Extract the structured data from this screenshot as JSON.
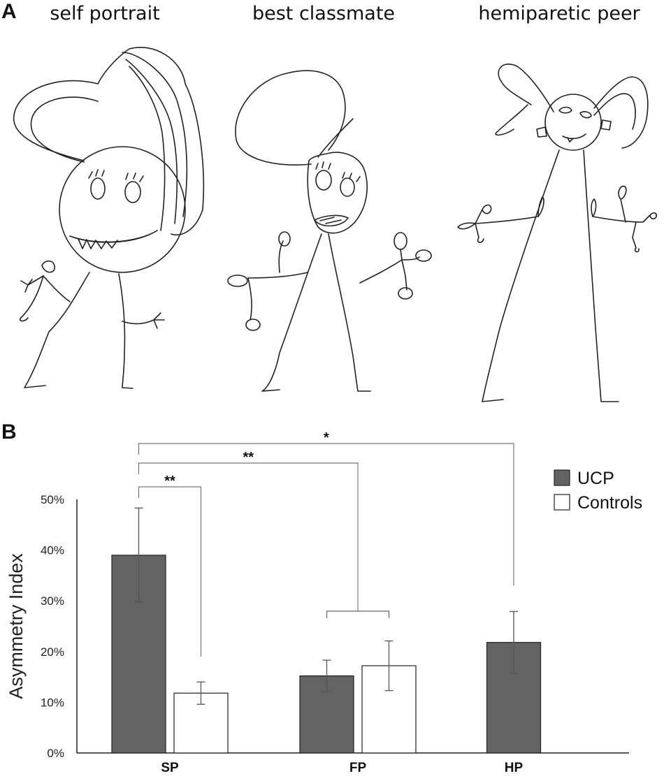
{
  "panel_a": {
    "letter": "A",
    "drawings": [
      {
        "title": "self portrait"
      },
      {
        "title": "best classmate"
      },
      {
        "title": "hemiparetic peer"
      }
    ]
  },
  "panel_b": {
    "letter": "B"
  },
  "chart_data": {
    "type": "bar",
    "categories": [
      "SP",
      "FP",
      "HP"
    ],
    "ylabel": "Asymmetry Index",
    "ylim": [
      0,
      50
    ],
    "yticks": [
      0,
      10,
      20,
      30,
      40,
      50
    ],
    "ytick_labels": [
      "0%",
      "10%",
      "20%",
      "30%",
      "40%",
      "50%"
    ],
    "legend_position": "top-right",
    "series": [
      {
        "name": "UCP",
        "color": "#636363",
        "values": [
          39,
          15.2,
          21.8
        ],
        "err_low": [
          29.8,
          12.1,
          15.7
        ],
        "err_high": [
          48.3,
          18.3,
          27.9
        ]
      },
      {
        "name": "Controls",
        "color": "#ffffff",
        "values": [
          11.8,
          17.2,
          null
        ],
        "err_low": [
          9.6,
          12.3,
          null
        ],
        "err_high": [
          14,
          22.1,
          null
        ]
      }
    ],
    "significance": [
      {
        "from": "SP UCP",
        "to": "SP Controls",
        "label": "**"
      },
      {
        "from": "SP UCP",
        "to": "FP",
        "label": "**"
      },
      {
        "from": "SP UCP",
        "to": "HP UCP",
        "label": "*"
      }
    ]
  }
}
